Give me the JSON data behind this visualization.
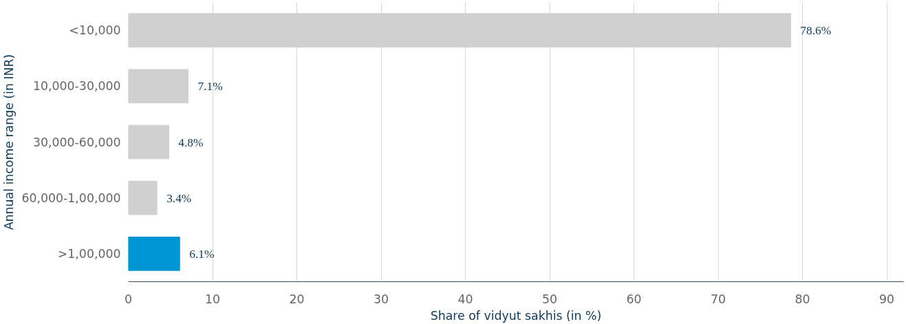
{
  "chart_data": {
    "type": "bar",
    "orientation": "horizontal",
    "categories": [
      "<10,000",
      "10,000-30,000",
      "30,000-60,000",
      "60,000-1,00,000",
      ">1,00,000"
    ],
    "values": [
      78.6,
      7.1,
      4.8,
      3.4,
      6.1
    ],
    "colors": [
      "#d0d0ce",
      "#d0d0ce",
      "#d0d0ce",
      "#d0d0ce",
      "#0096d6"
    ],
    "value_labels": [
      "78.6%",
      "7.1%",
      "4.8%",
      "3.4%",
      "6.1%"
    ],
    "xlim": [
      0,
      92
    ],
    "xticks": [
      0,
      10,
      20,
      30,
      40,
      50,
      60,
      70,
      80,
      90
    ],
    "xlabel": "Share of vidyut sakhis (in %)",
    "ylabel": "Annual income range (in INR)",
    "grid": "x"
  }
}
